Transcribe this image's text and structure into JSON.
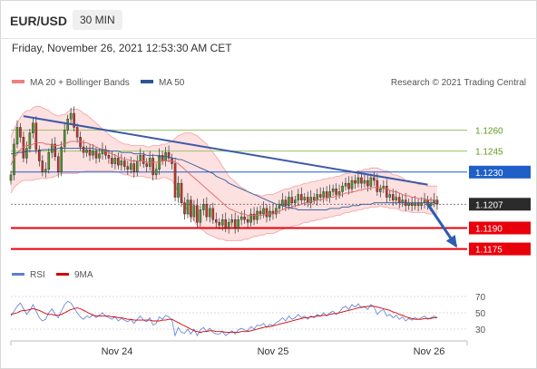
{
  "header": {
    "symbol": "EUR/USD",
    "timeframe": "30 MIN",
    "datetime": "Friday, November 26, 2021 12:53:30 AM CET"
  },
  "legend": {
    "bollinger_label": "MA 20 + Bollinger Bands",
    "ma50_label": "MA 50",
    "credit": "Research © 2021 Trading Central",
    "colors": {
      "bollinger": "#f08080",
      "ma50": "#2e5597"
    }
  },
  "rsi_legend": {
    "rsi_label": "RSI",
    "ma_label": "9MA",
    "colors": {
      "rsi": "#5b7fd6",
      "ma": "#d40000"
    }
  },
  "chart_data": [
    {
      "type": "candlestick",
      "ylim": [
        1.1165,
        1.1285
      ],
      "x_ticks": [
        "Nov 24",
        "Nov 25",
        "Nov 26"
      ],
      "levels": [
        {
          "value": 1.126,
          "label": "1.1260",
          "color": "#9cc36a",
          "kind": "resistance"
        },
        {
          "value": 1.1245,
          "label": "1.1245",
          "color": "#9cc36a",
          "kind": "resistance"
        },
        {
          "value": 1.123,
          "label": "1.1230",
          "color": "#1f5fc6",
          "kind": "pivot"
        },
        {
          "value": 1.1207,
          "label": "1.1207",
          "color": "#333333",
          "kind": "last_price"
        },
        {
          "value": 1.119,
          "label": "1.1190",
          "color": "#e8000b",
          "kind": "support"
        },
        {
          "value": 1.1175,
          "label": "1.1175",
          "color": "#e8000b",
          "kind": "support"
        }
      ],
      "closes": [
        1.1228,
        1.125,
        1.1262,
        1.1255,
        1.124,
        1.1247,
        1.1258,
        1.1265,
        1.1246,
        1.1238,
        1.123,
        1.1232,
        1.1244,
        1.125,
        1.1241,
        1.123,
        1.1248,
        1.126,
        1.1268,
        1.1272,
        1.1262,
        1.1255,
        1.1248,
        1.1244,
        1.1246,
        1.1242,
        1.1245,
        1.124,
        1.1243,
        1.1246,
        1.1242,
        1.124,
        1.1236,
        1.124,
        1.1235,
        1.1238,
        1.1234,
        1.1232,
        1.1236,
        1.123,
        1.1238,
        1.1242,
        1.1236,
        1.1234,
        1.124,
        1.1228,
        1.1232,
        1.1242,
        1.1238,
        1.1244,
        1.124,
        1.1236,
        1.1212,
        1.1222,
        1.1208,
        1.12,
        1.121,
        1.1198,
        1.1206,
        1.1194,
        1.1203,
        1.1207,
        1.1198,
        1.1204,
        1.1196,
        1.1194,
        1.1192,
        1.1196,
        1.119,
        1.1194,
        1.1196,
        1.119,
        1.1196,
        1.1198,
        1.1196,
        1.1194,
        1.12,
        1.1196,
        1.1202,
        1.12,
        1.1204,
        1.1198,
        1.1202,
        1.12,
        1.1204,
        1.1206,
        1.121,
        1.1206,
        1.1212,
        1.1208,
        1.121,
        1.1214,
        1.121,
        1.1212,
        1.1208,
        1.1212,
        1.121,
        1.1214,
        1.1212,
        1.1216,
        1.1212,
        1.1216,
        1.1218,
        1.1214,
        1.1216,
        1.122,
        1.1222,
        1.1218,
        1.1224,
        1.1222,
        1.1226,
        1.1222,
        1.1224,
        1.122,
        1.1226,
        1.1224,
        1.1216,
        1.1218,
        1.122,
        1.1212,
        1.1214,
        1.121,
        1.1212,
        1.1208,
        1.121,
        1.1206,
        1.1208,
        1.1206,
        1.1208,
        1.1206,
        1.1208,
        1.121,
        1.1206,
        1.1208,
        1.121,
        1.1207
      ],
      "ma20": [
        1.1235,
        1.124,
        1.1243,
        1.1246,
        1.1248,
        1.1249,
        1.1249,
        1.125,
        1.1251,
        1.1251,
        1.1251,
        1.125,
        1.125,
        1.1249,
        1.1249,
        1.1249,
        1.125,
        1.125,
        1.1251,
        1.1252,
        1.1252,
        1.1252,
        1.1252,
        1.1251,
        1.1251,
        1.125,
        1.1249,
        1.1248,
        1.1247,
        1.1246,
        1.1245,
        1.1244,
        1.1243,
        1.1242,
        1.1241,
        1.124,
        1.1239,
        1.1239,
        1.1238,
        1.1238,
        1.1238,
        1.1238,
        1.1238,
        1.1237,
        1.1237,
        1.1237,
        1.1237,
        1.1237,
        1.1238,
        1.1238,
        1.1238,
        1.1238,
        1.1237,
        1.1236,
        1.1234,
        1.1232,
        1.123,
        1.1228,
        1.1226,
        1.1224,
        1.1222,
        1.122,
        1.1218,
        1.1216,
        1.1214,
        1.1212,
        1.121,
        1.1208,
        1.1206,
        1.1204,
        1.1203,
        1.1202,
        1.1201,
        1.12,
        1.12,
        1.1199,
        1.1199,
        1.1199,
        1.1199,
        1.1199,
        1.1199,
        1.12,
        1.12,
        1.12,
        1.1201,
        1.1202,
        1.1203,
        1.1204,
        1.1204,
        1.1205,
        1.1206,
        1.1206,
        1.1207,
        1.1208,
        1.1208,
        1.1209,
        1.1209,
        1.121,
        1.121,
        1.1211,
        1.1211,
        1.1212,
        1.1212,
        1.1213,
        1.1213,
        1.1214,
        1.1215,
        1.1215,
        1.1216,
        1.1216,
        1.1217,
        1.1217,
        1.1218,
        1.1218,
        1.1219,
        1.1219,
        1.1219,
        1.1219,
        1.1218,
        1.1218,
        1.1217,
        1.1216,
        1.1216,
        1.1215,
        1.1214,
        1.1213,
        1.1213,
        1.1212,
        1.1212,
        1.1211,
        1.1211,
        1.1211,
        1.121,
        1.121,
        1.121,
        1.121
      ],
      "bb_width": [
        0.002,
        0.0021,
        0.0022,
        0.0023,
        0.0024,
        0.0025,
        0.0025,
        0.0026,
        0.0026,
        0.0026,
        0.0025,
        0.0025,
        0.0024,
        0.0023,
        0.0022,
        0.0021,
        0.0021,
        0.0021,
        0.0022,
        0.0023,
        0.0023,
        0.0023,
        0.0022,
        0.0021,
        0.002,
        0.0019,
        0.0018,
        0.0017,
        0.0016,
        0.0015,
        0.0014,
        0.0013,
        0.0012,
        0.0012,
        0.0011,
        0.0011,
        0.0011,
        0.0011,
        0.0011,
        0.0011,
        0.0011,
        0.0011,
        0.0011,
        0.0011,
        0.0011,
        0.0012,
        0.0012,
        0.0012,
        0.0012,
        0.0012,
        0.0013,
        0.0014,
        0.0017,
        0.002,
        0.0023,
        0.0026,
        0.0028,
        0.003,
        0.0031,
        0.0032,
        0.0032,
        0.0032,
        0.0032,
        0.0031,
        0.003,
        0.0029,
        0.0028,
        0.0026,
        0.0025,
        0.0023,
        0.0022,
        0.0021,
        0.002,
        0.0019,
        0.0018,
        0.0017,
        0.0016,
        0.0015,
        0.0015,
        0.0014,
        0.0014,
        0.0014,
        0.0014,
        0.0014,
        0.0014,
        0.0014,
        0.0014,
        0.0014,
        0.0014,
        0.0014,
        0.0014,
        0.0014,
        0.0014,
        0.0014,
        0.0014,
        0.0014,
        0.0014,
        0.0014,
        0.0014,
        0.0014,
        0.0014,
        0.0014,
        0.0014,
        0.0014,
        0.0014,
        0.0014,
        0.0014,
        0.0014,
        0.0014,
        0.0014,
        0.0014,
        0.0014,
        0.0014,
        0.0014,
        0.0014,
        0.0014,
        0.0014,
        0.0013,
        0.0013,
        0.0013,
        0.0013,
        0.0012,
        0.0012,
        0.0012,
        0.0012,
        0.0011,
        0.0011,
        0.0011,
        0.0011,
        0.001,
        0.001,
        0.001,
        0.001,
        0.001,
        0.001,
        0.001
      ],
      "ma50": [
        1.1243,
        1.1243,
        1.1244,
        1.1244,
        1.1244,
        1.1245,
        1.1245,
        1.1245,
        1.1245,
        1.1245,
        1.1246,
        1.1246,
        1.1246,
        1.1246,
        1.1246,
        1.1247,
        1.1247,
        1.1247,
        1.1247,
        1.1247,
        1.1247,
        1.1247,
        1.1247,
        1.1247,
        1.1247,
        1.1247,
        1.1247,
        1.1246,
        1.1246,
        1.1246,
        1.1246,
        1.1245,
        1.1245,
        1.1245,
        1.1245,
        1.1244,
        1.1244,
        1.1244,
        1.1244,
        1.1243,
        1.1243,
        1.1243,
        1.1243,
        1.1242,
        1.1242,
        1.1242,
        1.1242,
        1.1241,
        1.1241,
        1.1241,
        1.1241,
        1.124,
        1.124,
        1.1239,
        1.1239,
        1.1238,
        1.1237,
        1.1236,
        1.1235,
        1.1234,
        1.1233,
        1.1232,
        1.1231,
        1.123,
        1.1229,
        1.1227,
        1.1226,
        1.1225,
        1.1224,
        1.1222,
        1.1221,
        1.122,
        1.1219,
        1.1218,
        1.1217,
        1.1216,
        1.1215,
        1.1214,
        1.1213,
        1.1212,
        1.1211,
        1.121,
        1.1209,
        1.1208,
        1.1207,
        1.1207,
        1.1206,
        1.1205,
        1.1205,
        1.1204,
        1.1204,
        1.1203,
        1.1203,
        1.1203,
        1.1203,
        1.1203,
        1.1203,
        1.1203,
        1.1203,
        1.1203,
        1.1203,
        1.1204,
        1.1204,
        1.1204,
        1.1204,
        1.1205,
        1.1205,
        1.1205,
        1.1206,
        1.1206,
        1.1206,
        1.1207,
        1.1207,
        1.1207,
        1.1207,
        1.1208,
        1.1208,
        1.1208,
        1.1208,
        1.1208,
        1.1208,
        1.1208,
        1.1208,
        1.1208,
        1.1208,
        1.1208,
        1.1208,
        1.1208,
        1.1208,
        1.1208,
        1.1208,
        1.1208,
        1.1208,
        1.1208,
        1.1208,
        1.1207
      ],
      "trendline": [
        [
          4,
          1.127
        ],
        [
          132,
          1.1221
        ]
      ],
      "forecast_arrow": [
        [
          132,
          1.1207
        ],
        [
          141,
          1.1177
        ]
      ]
    },
    {
      "type": "line",
      "title": "RSI",
      "ylim": [
        20,
        80
      ],
      "y_ticks": [
        70,
        50,
        30
      ],
      "rsi": [
        46,
        52,
        58,
        62,
        55,
        48,
        53,
        60,
        52,
        44,
        40,
        42,
        50,
        55,
        48,
        44,
        52,
        60,
        64,
        62,
        56,
        50,
        45,
        42,
        46,
        44,
        48,
        44,
        47,
        50,
        46,
        44,
        42,
        45,
        40,
        43,
        41,
        39,
        42,
        37,
        42,
        46,
        41,
        39,
        44,
        35,
        37,
        45,
        42,
        47,
        45,
        41,
        22,
        32,
        26,
        25,
        30,
        24,
        30,
        22,
        29,
        32,
        27,
        31,
        26,
        24,
        24,
        27,
        22,
        25,
        28,
        24,
        29,
        31,
        29,
        28,
        33,
        30,
        35,
        34,
        37,
        32,
        36,
        34,
        38,
        40,
        44,
        40,
        46,
        42,
        44,
        48,
        44,
        46,
        42,
        46,
        44,
        48,
        46,
        50,
        46,
        50,
        52,
        48,
        51,
        56,
        58,
        54,
        60,
        57,
        61,
        56,
        58,
        54,
        60,
        57,
        48,
        52,
        54,
        46,
        48,
        44,
        47,
        42,
        45,
        40,
        43,
        41,
        44,
        42,
        44,
        46,
        42,
        44,
        46,
        44
      ],
      "ma9": [
        48,
        49,
        50,
        52,
        53,
        53,
        54,
        55,
        54,
        53,
        51,
        49,
        48,
        48,
        47,
        47,
        48,
        50,
        52,
        54,
        55,
        56,
        55,
        53,
        51,
        49,
        47,
        46,
        46,
        46,
        46,
        46,
        45,
        45,
        44,
        44,
        43,
        42,
        42,
        41,
        41,
        41,
        41,
        41,
        41,
        40,
        40,
        40,
        41,
        41,
        42,
        42,
        40,
        38,
        36,
        34,
        32,
        30,
        28,
        27,
        26,
        27,
        27,
        28,
        28,
        27,
        27,
        27,
        26,
        26,
        26,
        26,
        26,
        27,
        27,
        27,
        28,
        29,
        30,
        31,
        32,
        33,
        33,
        34,
        35,
        36,
        37,
        38,
        39,
        40,
        41,
        42,
        43,
        44,
        44,
        45,
        45,
        46,
        46,
        47,
        47,
        48,
        49,
        49,
        50,
        51,
        52,
        53,
        54,
        55,
        56,
        57,
        57,
        58,
        58,
        58,
        57,
        56,
        55,
        54,
        53,
        51,
        50,
        48,
        47,
        45,
        44,
        43,
        42,
        42,
        42,
        43,
        43,
        43,
        44,
        44
      ]
    }
  ]
}
